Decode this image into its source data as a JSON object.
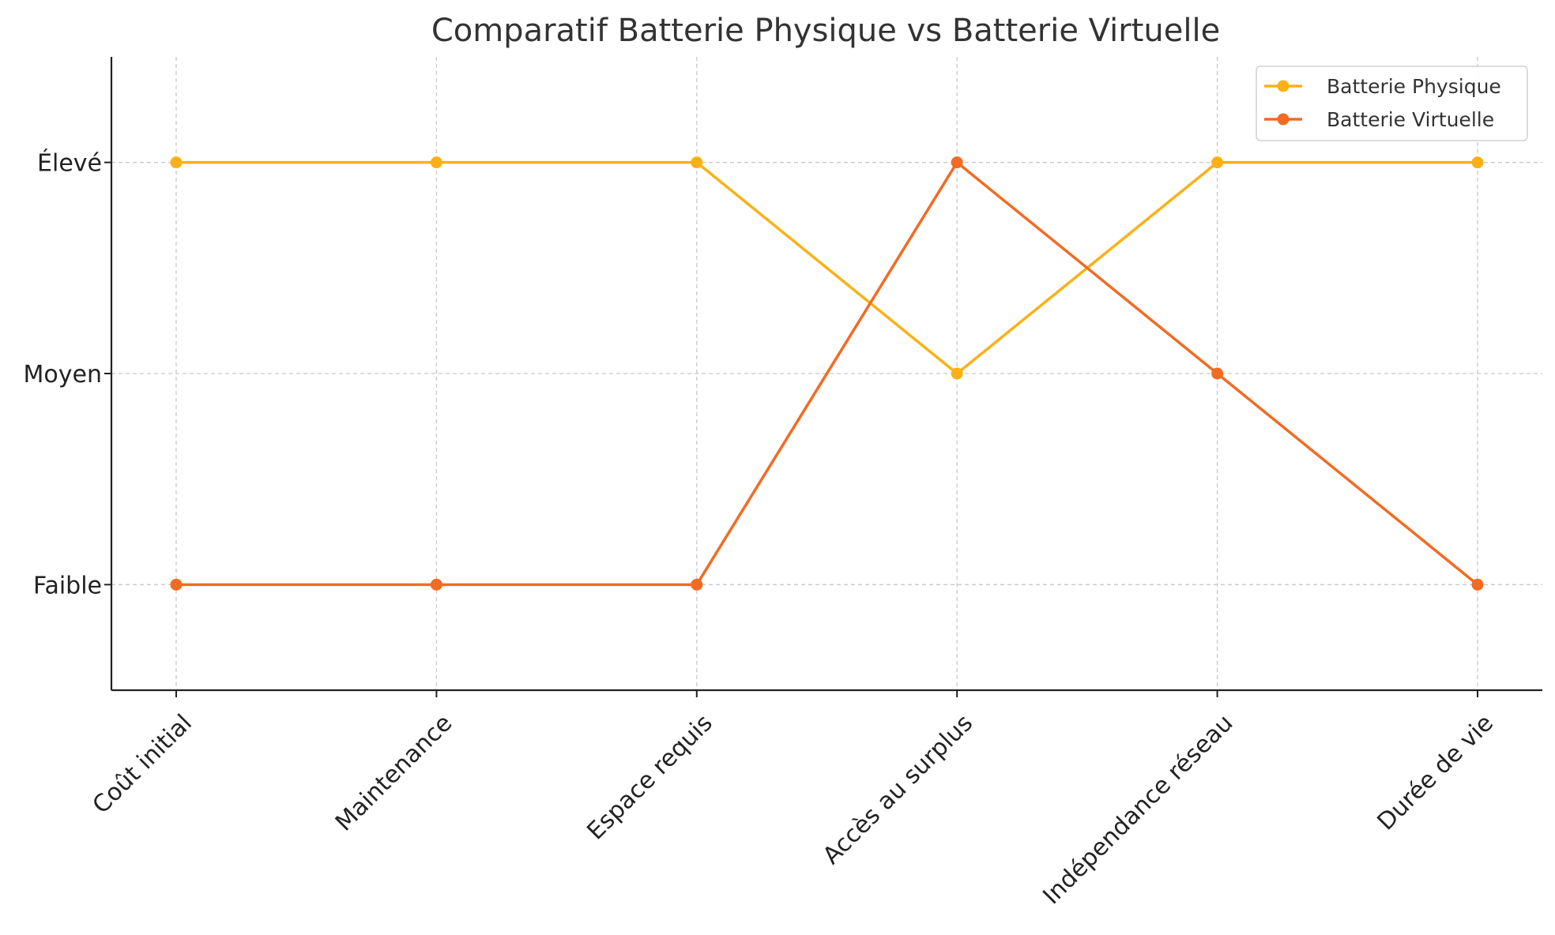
{
  "chart_data": {
    "type": "line",
    "title": "Comparatif Batterie Physique vs Batterie Virtuelle",
    "xlabel": "",
    "ylabel": "",
    "categories": [
      "Coût initial",
      "Maintenance",
      "Espace requis",
      "Accès au surplus",
      "Indépendance réseau",
      "Durée de vie"
    ],
    "y_tick_labels": [
      "Faible",
      "Moyen",
      "Élevé"
    ],
    "y_tick_values": [
      1,
      2,
      3
    ],
    "ylim": [
      0.5,
      3.5
    ],
    "grid": true,
    "legend_position": "top-right",
    "series": [
      {
        "name": "Batterie Physique",
        "color": "#FBB116",
        "values": [
          3,
          3,
          3,
          2,
          3,
          3
        ]
      },
      {
        "name": "Batterie Virtuelle",
        "color": "#F26B22",
        "values": [
          1,
          1,
          1,
          3,
          2,
          1
        ]
      }
    ]
  }
}
